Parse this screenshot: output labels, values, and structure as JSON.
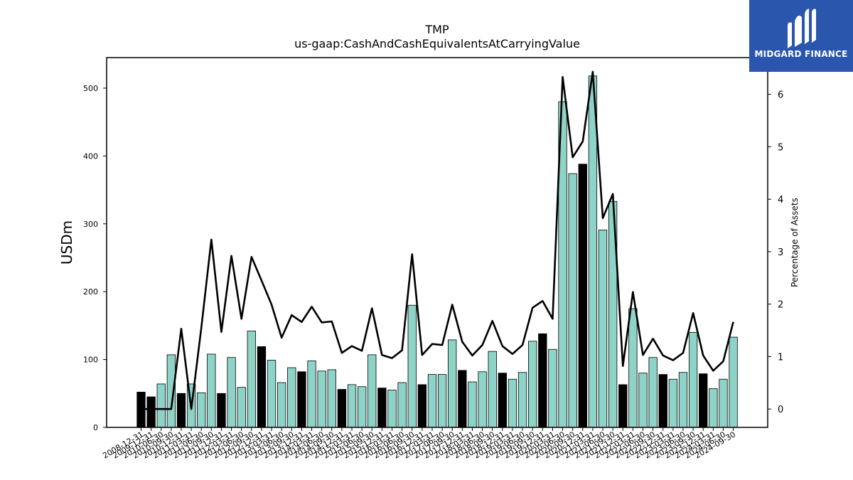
{
  "brand": {
    "name": "MIDGARD FINANCE"
  },
  "chart_data": {
    "type": "bar",
    "title": "TMP",
    "subtitle": "us-gaap:CashAndCashEquivalentsAtCarryingValue",
    "ylabel": "USDm",
    "ylabel_right": "Percentage of Assets",
    "ylim": [
      0,
      545
    ],
    "ylim_right": [
      -0.35,
      6.7
    ],
    "yticks": [
      0,
      100,
      200,
      300,
      400,
      500
    ],
    "yticks_right": [
      0,
      1,
      2,
      3,
      4,
      5,
      6
    ],
    "grid": false,
    "categories": [
      "2008-12-31",
      "2009-12-31",
      "2010-06-30",
      "2010-09-30",
      "2010-12-31",
      "2011-03-31",
      "2011-06-30",
      "2011-09-30",
      "2011-12-31",
      "2012-03-31",
      "2012-06-30",
      "2012-09-30",
      "2012-12-31",
      "2013-03-31",
      "2013-06-30",
      "2013-09-30",
      "2013-12-31",
      "2014-03-31",
      "2014-06-30",
      "2014-09-30",
      "2014-12-31",
      "2015-03-31",
      "2015-06-30",
      "2015-09-30",
      "2015-12-31",
      "2016-03-31",
      "2016-06-30",
      "2016-09-30",
      "2016-12-31",
      "2017-03-31",
      "2017-06-30",
      "2017-09-30",
      "2017-12-31",
      "2018-03-31",
      "2018-06-30",
      "2018-09-30",
      "2018-12-31",
      "2019-03-31",
      "2019-06-30",
      "2019-09-30",
      "2019-12-31",
      "2020-03-31",
      "2020-06-30",
      "2020-09-30",
      "2020-12-31",
      "2021-03-31",
      "2021-06-30",
      "2021-09-30",
      "2021-12-31",
      "2022-03-31",
      "2022-06-30",
      "2022-09-30",
      "2022-12-31",
      "2023-03-31",
      "2023-06-30",
      "2023-09-30",
      "2023-12-31",
      "2024-03-31",
      "2024-06-30",
      "2024-09-30"
    ],
    "series": [
      {
        "kind": "bar",
        "axis": "left",
        "values": [
          52,
          45,
          64,
          107,
          50,
          64,
          51,
          108,
          50,
          103,
          59,
          142,
          119,
          99,
          66,
          88,
          82,
          98,
          83,
          85,
          56,
          63,
          60,
          107,
          58,
          55,
          66,
          180,
          63,
          78,
          78,
          129,
          84,
          67,
          82,
          112,
          80,
          71,
          81,
          127,
          138,
          115,
          480,
          374,
          388,
          518,
          291,
          333,
          63,
          175,
          80,
          103,
          78,
          71,
          81,
          140,
          79,
          57,
          71,
          133
        ],
        "annual": [
          true,
          true,
          false,
          false,
          true,
          false,
          false,
          false,
          true,
          false,
          false,
          false,
          true,
          false,
          false,
          false,
          true,
          false,
          false,
          false,
          true,
          false,
          false,
          false,
          true,
          false,
          false,
          false,
          true,
          false,
          false,
          false,
          true,
          false,
          false,
          false,
          true,
          false,
          false,
          false,
          true,
          false,
          false,
          false,
          true,
          false,
          false,
          false,
          true,
          false,
          false,
          false,
          true,
          false,
          false,
          false,
          true,
          false,
          false,
          false
        ]
      },
      {
        "kind": "line",
        "axis": "right",
        "values": [
          0,
          0,
          0,
          0,
          1.53,
          0,
          1.55,
          3.23,
          1.47,
          2.92,
          1.72,
          2.9,
          2.45,
          1.99,
          1.36,
          1.79,
          1.66,
          1.95,
          1.65,
          1.67,
          1.07,
          1.2,
          1.11,
          1.92,
          1.03,
          0.97,
          1.12,
          2.95,
          1.03,
          1.24,
          1.22,
          1.99,
          1.28,
          1.02,
          1.22,
          1.68,
          1.2,
          1.05,
          1.22,
          1.93,
          2.06,
          1.72,
          6.33,
          4.8,
          5.1,
          6.43,
          3.64,
          4.1,
          0.82,
          2.23,
          1.03,
          1.34,
          1.02,
          0.93,
          1.07,
          1.83,
          1.02,
          0.73,
          0.91,
          1.66
        ]
      }
    ],
    "colors": {
      "bar_quarter": "#8dd3c7",
      "bar_annual": "#000000",
      "line": "#000000",
      "brand": "#2a56ad"
    }
  }
}
